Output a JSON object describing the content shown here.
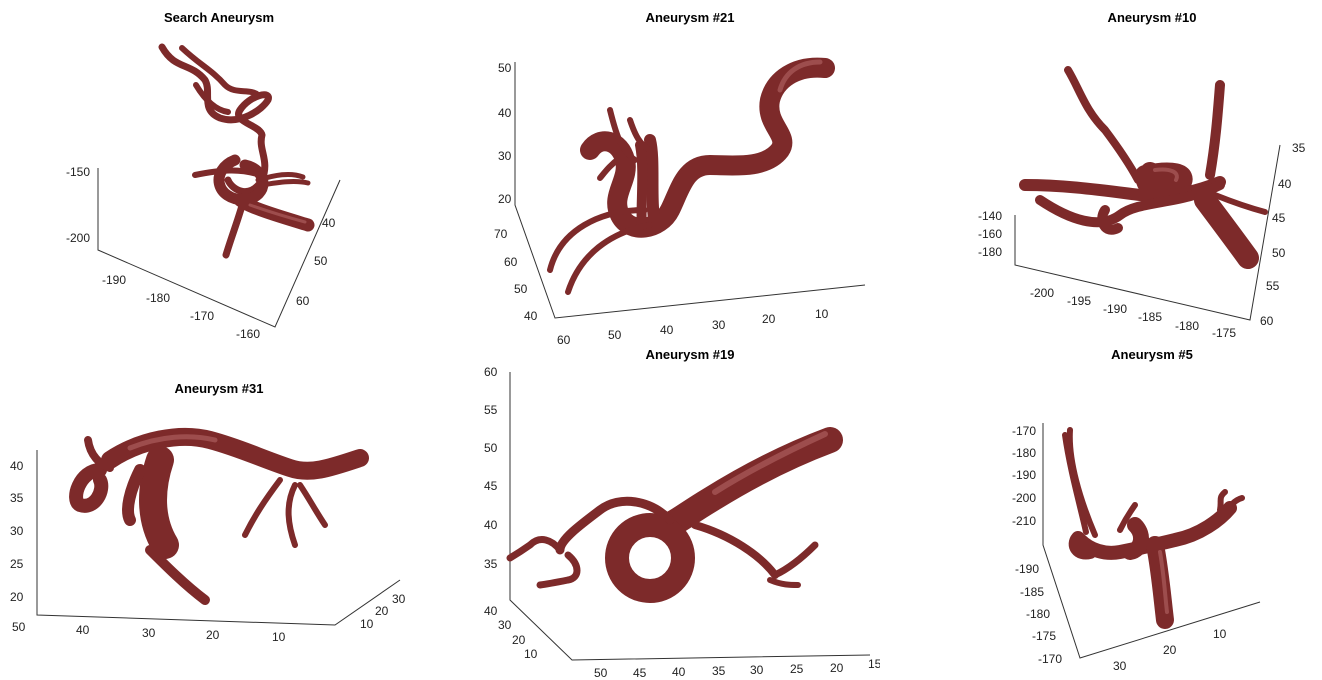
{
  "panels": [
    {
      "title": "Search Aneurysm",
      "z_ticks": [
        "-150",
        "-200"
      ],
      "x_ticks": [
        "-190",
        "-180",
        "-170",
        "-160"
      ],
      "y_ticks": [
        "40",
        "50",
        "60"
      ]
    },
    {
      "title": "Aneurysm #21",
      "z_ticks": [
        "50",
        "40",
        "30",
        "20"
      ],
      "y_ticks": [
        "70",
        "60",
        "50",
        "40"
      ],
      "x_ticks": [
        "60",
        "50",
        "40",
        "30",
        "20",
        "10"
      ]
    },
    {
      "title": "Aneurysm #10",
      "z_ticks": [
        "-140",
        "-160",
        "-180"
      ],
      "x_ticks": [
        "-200",
        "-195",
        "-190",
        "-185",
        "-180",
        "-175"
      ],
      "y_ticks": [
        "35",
        "40",
        "45",
        "50",
        "55",
        "60"
      ]
    },
    {
      "title": "Aneurysm #31",
      "z_ticks": [
        "40",
        "35",
        "30",
        "25",
        "20"
      ],
      "x_ticks": [
        "50",
        "40",
        "30",
        "20",
        "10"
      ],
      "y_ticks": [
        "10",
        "20",
        "30"
      ]
    },
    {
      "title": "Aneurysm #19",
      "z_ticks": [
        "60",
        "55",
        "50",
        "45",
        "40",
        "35"
      ],
      "y_ticks": [
        "40",
        "30",
        "20",
        "10"
      ],
      "x_ticks": [
        "50",
        "45",
        "40",
        "35",
        "30",
        "25",
        "20",
        "15"
      ]
    },
    {
      "title": "Aneurysm #5",
      "z_ticks": [
        "-170",
        "-180",
        "-190",
        "-200",
        "-210"
      ],
      "y_ticks": [
        "-190",
        "-185",
        "-180",
        "-175",
        "-170"
      ],
      "x_ticks": [
        "30",
        "20",
        "10"
      ]
    }
  ],
  "colors": {
    "vessel": "#7d2a2a",
    "highlight": "#b86a6a",
    "axis": "#333333"
  }
}
